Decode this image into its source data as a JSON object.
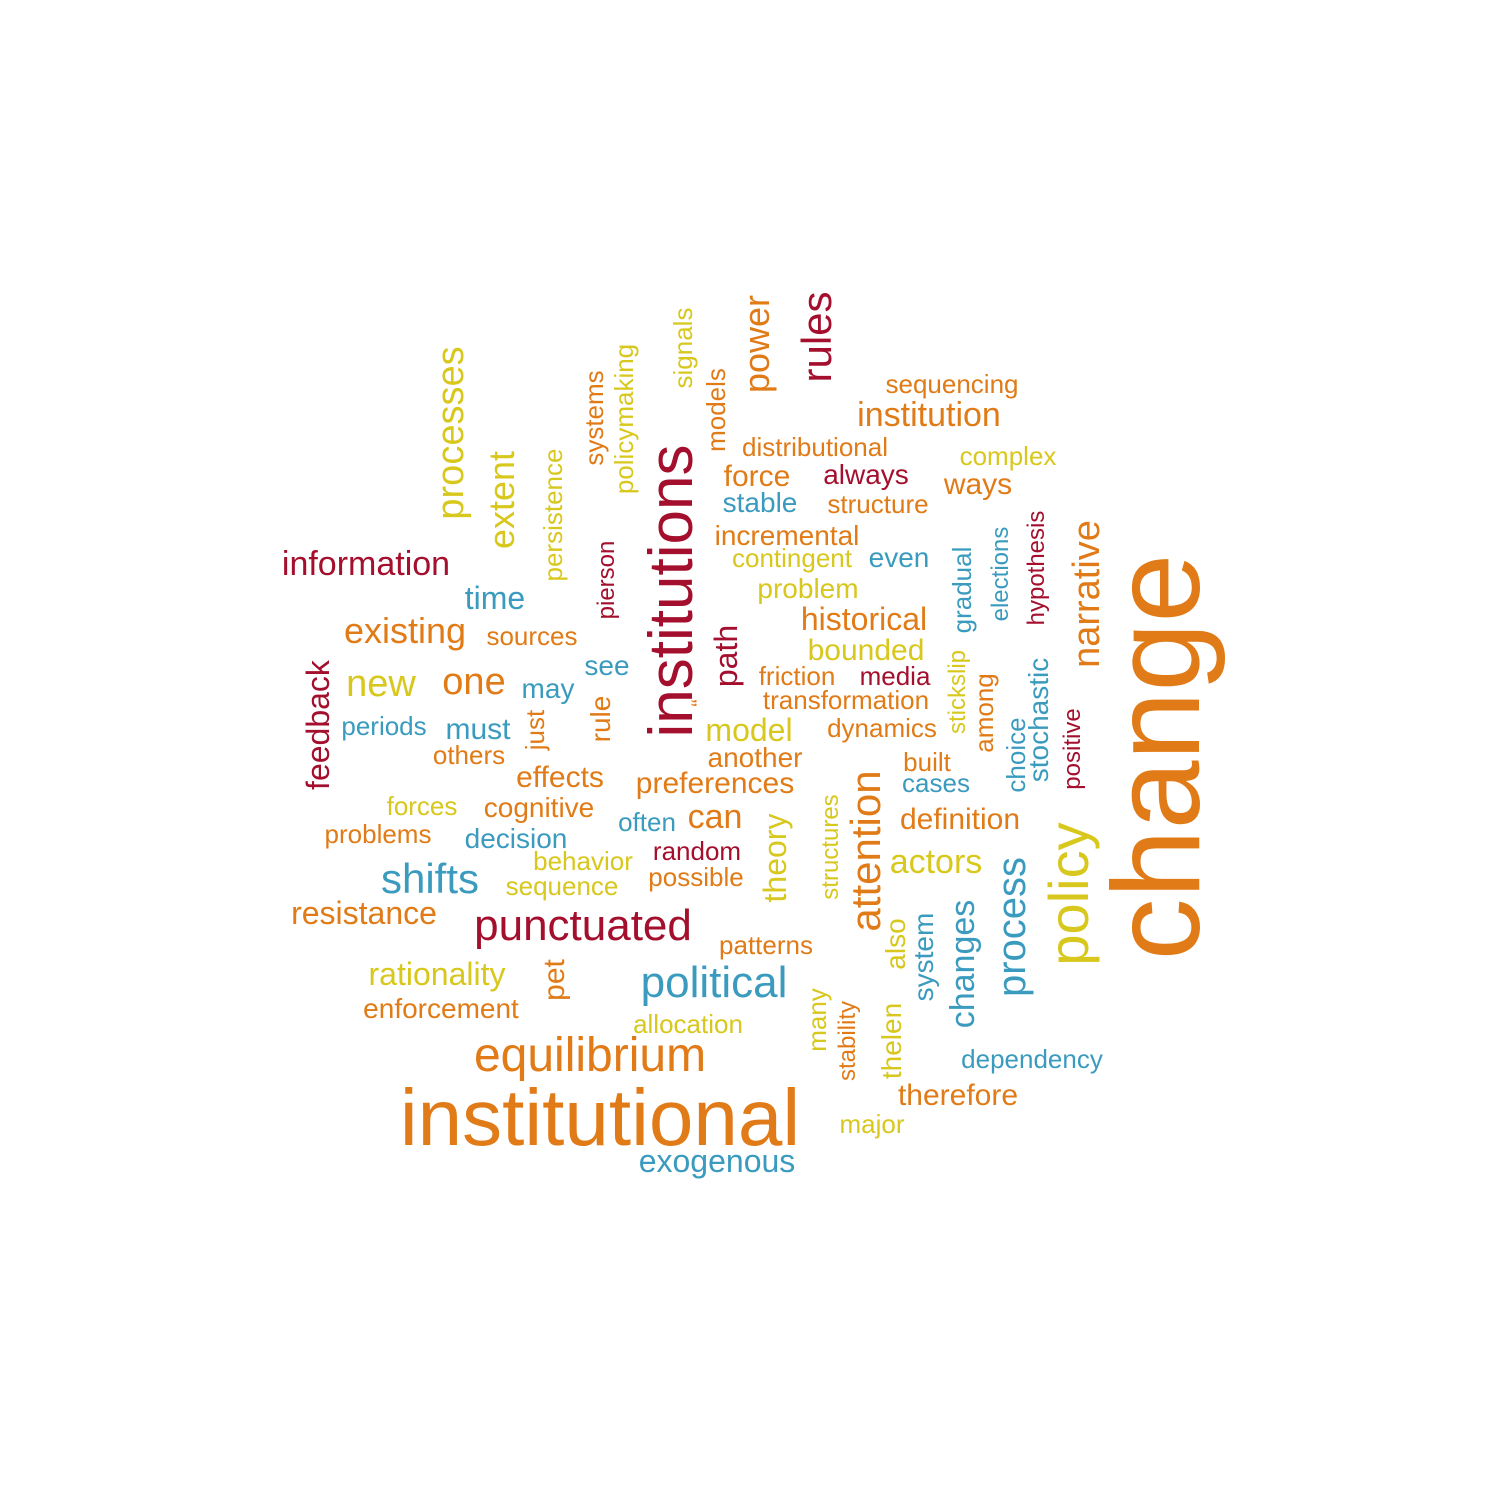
{
  "colors": {
    "orange": "#E07B17",
    "yellow": "#D8C71C",
    "crimson": "#A30F2D",
    "teal": "#3A9BBF"
  },
  "words": [
    {
      "text": "change",
      "color": "orange"
    },
    {
      "text": "institutional",
      "color": "orange"
    },
    {
      "text": "institutions",
      "color": "crimson"
    },
    {
      "text": "policy",
      "color": "yellow"
    },
    {
      "text": "equilibrium",
      "color": "orange"
    },
    {
      "text": "political",
      "color": "teal"
    },
    {
      "text": "punctuated",
      "color": "crimson"
    },
    {
      "text": "attention",
      "color": "orange"
    },
    {
      "text": "process",
      "color": "teal"
    },
    {
      "text": "rules",
      "color": "crimson"
    },
    {
      "text": "processes",
      "color": "yellow"
    },
    {
      "text": "narrative",
      "color": "orange"
    },
    {
      "text": "shifts",
      "color": "teal"
    },
    {
      "text": "power",
      "color": "orange"
    },
    {
      "text": "extent",
      "color": "yellow"
    },
    {
      "text": "changes",
      "color": "teal"
    },
    {
      "text": "institution",
      "color": "orange"
    },
    {
      "text": "information",
      "color": "crimson"
    },
    {
      "text": "existing",
      "color": "orange"
    },
    {
      "text": "new",
      "color": "yellow"
    },
    {
      "text": "one",
      "color": "orange"
    },
    {
      "text": "feedback",
      "color": "crimson"
    },
    {
      "text": "rationality",
      "color": "yellow"
    },
    {
      "text": "resistance",
      "color": "orange"
    },
    {
      "text": "historical",
      "color": "orange"
    },
    {
      "text": "actors",
      "color": "yellow"
    },
    {
      "text": "exogenous",
      "color": "teal"
    },
    {
      "text": "time",
      "color": "teal"
    },
    {
      "text": "path",
      "color": "crimson"
    },
    {
      "text": "model",
      "color": "yellow"
    },
    {
      "text": "preferences",
      "color": "orange"
    },
    {
      "text": "can",
      "color": "orange"
    },
    {
      "text": "theory",
      "color": "yellow"
    },
    {
      "text": "bounded",
      "color": "yellow"
    },
    {
      "text": "definition",
      "color": "orange"
    },
    {
      "text": "therefore",
      "color": "orange"
    },
    {
      "text": "effects",
      "color": "orange"
    },
    {
      "text": "ways",
      "color": "orange"
    },
    {
      "text": "force",
      "color": "orange"
    },
    {
      "text": "must",
      "color": "teal"
    },
    {
      "text": "decision",
      "color": "teal"
    },
    {
      "text": "incremental",
      "color": "orange"
    },
    {
      "text": "cognitive",
      "color": "orange"
    },
    {
      "text": "pet",
      "color": "orange"
    },
    {
      "text": "system",
      "color": "teal"
    },
    {
      "text": "thelen",
      "color": "yellow"
    },
    {
      "text": "also",
      "color": "yellow"
    },
    {
      "text": "enforcement",
      "color": "orange"
    },
    {
      "text": "another",
      "color": "orange"
    },
    {
      "text": "rule",
      "color": "orange"
    },
    {
      "text": "random",
      "color": "crimson"
    },
    {
      "text": "may",
      "color": "teal"
    },
    {
      "text": "stable",
      "color": "teal"
    },
    {
      "text": "always",
      "color": "crimson"
    },
    {
      "text": "even",
      "color": "teal"
    },
    {
      "text": "friction",
      "color": "orange"
    },
    {
      "text": "persistence",
      "color": "yellow"
    },
    {
      "text": "policymaking",
      "color": "yellow"
    },
    {
      "text": "systems",
      "color": "orange"
    },
    {
      "text": "models",
      "color": "orange"
    },
    {
      "text": "signals",
      "color": "yellow"
    },
    {
      "text": "distributional",
      "color": "orange"
    },
    {
      "text": "complex",
      "color": "yellow"
    },
    {
      "text": "structure",
      "color": "orange"
    },
    {
      "text": "sequencing",
      "color": "orange"
    },
    {
      "text": "contingent",
      "color": "yellow"
    },
    {
      "text": "problem",
      "color": "yellow"
    },
    {
      "text": "sources",
      "color": "orange"
    },
    {
      "text": "see",
      "color": "teal"
    },
    {
      "text": "media",
      "color": "crimson"
    },
    {
      "text": "transformation",
      "color": "orange"
    },
    {
      "text": "dynamics",
      "color": "orange"
    },
    {
      "text": "periods",
      "color": "teal"
    },
    {
      "text": "others",
      "color": "orange"
    },
    {
      "text": "just",
      "color": "orange"
    },
    {
      "text": "built",
      "color": "orange"
    },
    {
      "text": "cases",
      "color": "teal"
    },
    {
      "text": "forces",
      "color": "yellow"
    },
    {
      "text": "problems",
      "color": "orange"
    },
    {
      "text": "often",
      "color": "teal"
    },
    {
      "text": "behavior",
      "color": "yellow"
    },
    {
      "text": "sequence",
      "color": "yellow"
    },
    {
      "text": "possible",
      "color": "orange"
    },
    {
      "text": "patterns",
      "color": "orange"
    },
    {
      "text": "allocation",
      "color": "yellow"
    },
    {
      "text": "major",
      "color": "yellow"
    },
    {
      "text": "dependency",
      "color": "teal"
    },
    {
      "text": "many",
      "color": "yellow"
    },
    {
      "text": "stability",
      "color": "orange"
    },
    {
      "text": "structures",
      "color": "yellow"
    },
    {
      "text": "pierson",
      "color": "crimson"
    },
    {
      "text": "gradual",
      "color": "teal"
    },
    {
      "text": "stickslip",
      "color": "yellow"
    },
    {
      "text": "among",
      "color": "orange"
    },
    {
      "text": "elections",
      "color": "teal"
    },
    {
      "text": "hypothesis",
      "color": "crimson"
    },
    {
      "text": "stochastic",
      "color": "teal"
    },
    {
      "text": "choice",
      "color": "teal"
    },
    {
      "text": "positive",
      "color": "crimson"
    },
    {
      "text": "“",
      "color": "orange"
    }
  ]
}
